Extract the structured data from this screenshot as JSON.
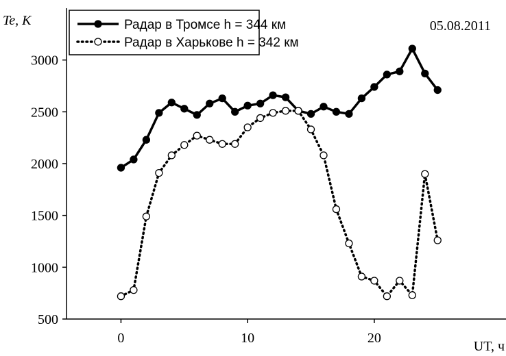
{
  "chart_data": {
    "type": "line",
    "y_label": "Te, K",
    "x_label": "UT, ч",
    "annotation": "05.08.2011",
    "x": [
      0,
      1,
      2,
      3,
      4,
      5,
      6,
      7,
      8,
      9,
      10,
      11,
      12,
      13,
      14,
      15,
      16,
      17,
      18,
      19,
      20,
      21,
      22,
      23,
      24,
      25
    ],
    "series": [
      {
        "name": "Радар в Тромсе  h = 344 км",
        "color": "#000000",
        "line_style": "solid",
        "marker_fill": "filled",
        "values": [
          1960,
          2040,
          2230,
          2490,
          2590,
          2530,
          2470,
          2580,
          2630,
          2500,
          2560,
          2580,
          2660,
          2640,
          2510,
          2480,
          2550,
          2500,
          2480,
          2630,
          2740,
          2860,
          2890,
          3110,
          2870,
          2710
        ]
      },
      {
        "name": "Радар в Харькове  h = 342 км",
        "color": "#000000",
        "line_style": "dotted",
        "marker_fill": "open",
        "values": [
          720,
          780,
          1490,
          1910,
          2080,
          2180,
          2270,
          2230,
          2190,
          2190,
          2350,
          2440,
          2490,
          2510,
          2510,
          2330,
          2080,
          1560,
          1230,
          910,
          870,
          720,
          870,
          730,
          1900,
          1260
        ]
      }
    ],
    "xlim": [
      -4.3,
      30.4
    ],
    "ylim": [
      500,
      3500
    ],
    "xticks": [
      0,
      10,
      20
    ],
    "yticks": [
      500,
      1000,
      1500,
      2000,
      2500,
      3000
    ],
    "legend": "upper left"
  }
}
